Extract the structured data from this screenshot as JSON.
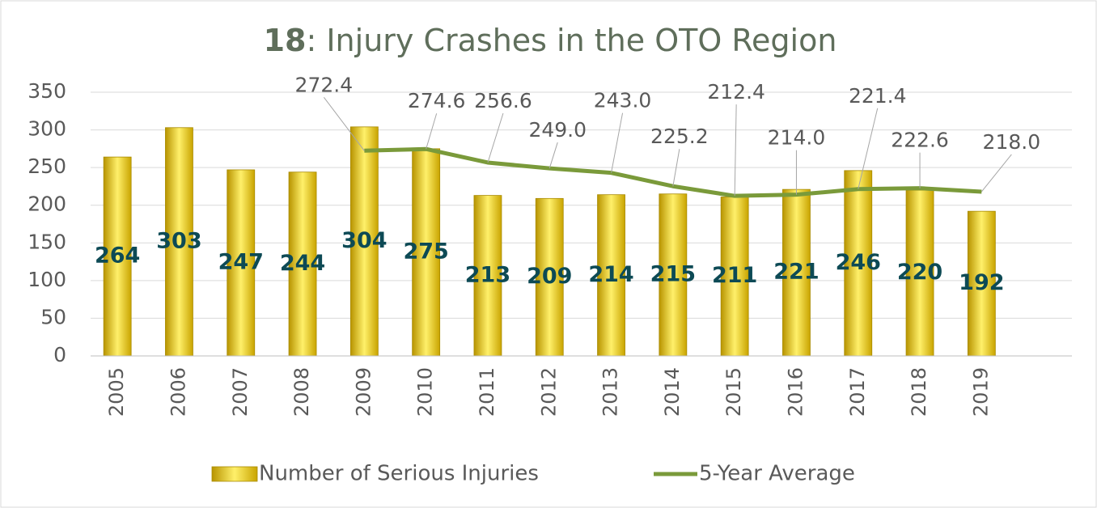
{
  "chart_data": {
    "type": "bar",
    "title": [
      "18",
      ": Injury Crashes in the OTO Region"
    ],
    "categories": [
      "2005",
      "2006",
      "2007",
      "2008",
      "2009",
      "2010",
      "2011",
      "2012",
      "2013",
      "2014",
      "2015",
      "2016",
      "2017",
      "2018",
      "2019"
    ],
    "series": [
      {
        "name": "Number of Serious Injuries",
        "type": "bar",
        "color": "#e6c619",
        "values": [
          264,
          303,
          247,
          244,
          304,
          275,
          213,
          209,
          214,
          215,
          211,
          221,
          246,
          220,
          192
        ]
      },
      {
        "name": "5-Year Average",
        "type": "line",
        "color": "#7a9a3a",
        "values": [
          null,
          null,
          null,
          null,
          272.4,
          274.6,
          256.6,
          249.0,
          243.0,
          225.2,
          212.4,
          214.0,
          221.4,
          222.6,
          218.0
        ],
        "value_labels": [
          null,
          null,
          null,
          null,
          "272.4",
          "274.6",
          "256.6",
          "249.0",
          "243.0",
          "225.2",
          "212.4",
          "214.0",
          "221.4",
          "222.6",
          "218.0"
        ]
      }
    ],
    "ylim": [
      0,
      350
    ],
    "yticks": [
      0,
      50,
      100,
      150,
      200,
      250,
      300,
      350
    ],
    "grid": true,
    "legend": "bottom"
  }
}
